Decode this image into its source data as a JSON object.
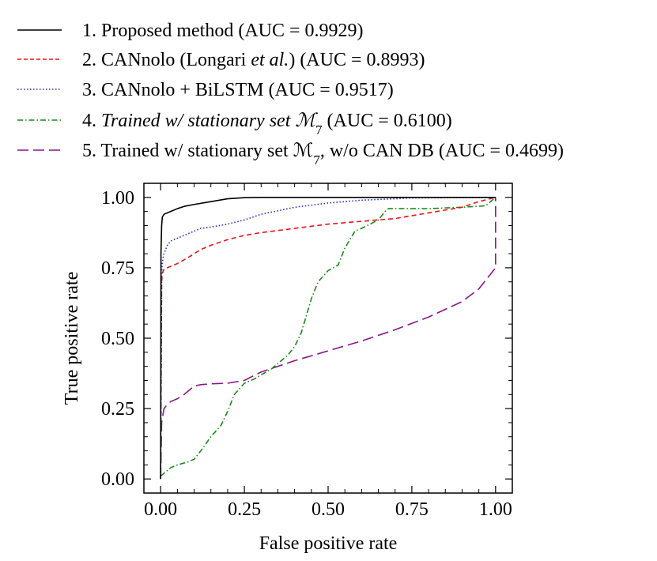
{
  "chart_data": {
    "type": "line",
    "title": "",
    "xlabel": "False positive rate",
    "ylabel": "True positive rate",
    "xlim": [
      -0.05,
      1.05
    ],
    "ylim": [
      -0.05,
      1.05
    ],
    "x_ticks": [
      0.0,
      0.25,
      0.5,
      0.75,
      1.0
    ],
    "y_ticks": [
      0.0,
      0.25,
      0.5,
      0.75,
      1.0
    ],
    "x_tick_labels": [
      "0.00",
      "0.25",
      "0.50",
      "0.75",
      "1.00"
    ],
    "y_tick_labels": [
      "0.00",
      "0.25",
      "0.50",
      "0.75",
      "1.00"
    ],
    "legend_position": "top",
    "series": [
      {
        "name": "1. Proposed method (AUC = 0.9929)",
        "color": "#000000",
        "dash": "solid",
        "x": [
          0.0,
          0.001,
          0.003,
          0.005,
          0.01,
          0.02,
          0.03,
          0.05,
          0.07,
          0.1,
          0.15,
          0.2,
          0.25,
          0.3,
          0.5,
          0.75,
          1.0
        ],
        "y": [
          0.0,
          0.8,
          0.9,
          0.93,
          0.94,
          0.945,
          0.95,
          0.96,
          0.968,
          0.975,
          0.985,
          0.995,
          0.999,
          1.0,
          1.0,
          1.0,
          1.0
        ]
      },
      {
        "name": "2. CANnolo (Longari et al.) (AUC = 0.8993)",
        "color": "#e8141c",
        "dash": "6,4",
        "x": [
          0.0,
          0.003,
          0.005,
          0.01,
          0.02,
          0.05,
          0.08,
          0.1,
          0.12,
          0.15,
          0.2,
          0.25,
          0.3,
          0.4,
          0.5,
          0.6,
          0.7,
          0.75,
          0.8,
          0.9,
          0.95,
          1.0
        ],
        "y": [
          0.0,
          0.7,
          0.73,
          0.745,
          0.75,
          0.765,
          0.785,
          0.8,
          0.815,
          0.83,
          0.85,
          0.865,
          0.875,
          0.89,
          0.905,
          0.915,
          0.925,
          0.935,
          0.945,
          0.965,
          0.985,
          1.0
        ]
      },
      {
        "name": "3. CANnolo + BiLSTM (AUC = 0.9517)",
        "color": "#1f2bd6",
        "dash": "1.5,2.5",
        "x": [
          0.0,
          0.003,
          0.005,
          0.01,
          0.02,
          0.03,
          0.05,
          0.07,
          0.1,
          0.12,
          0.15,
          0.2,
          0.25,
          0.3,
          0.4,
          0.5,
          0.6,
          0.75,
          1.0
        ],
        "y": [
          0.0,
          0.72,
          0.77,
          0.8,
          0.83,
          0.845,
          0.855,
          0.865,
          0.88,
          0.89,
          0.895,
          0.905,
          0.92,
          0.94,
          0.965,
          0.98,
          0.99,
          0.998,
          1.0
        ]
      },
      {
        "name": "4. Trained w/ stationary set ℳ₇ (AUC = 0.6100)",
        "color": "#1a8a1a",
        "dash": "7,3,1.5,3",
        "x": [
          0.0,
          0.01,
          0.03,
          0.05,
          0.08,
          0.1,
          0.12,
          0.15,
          0.18,
          0.2,
          0.22,
          0.25,
          0.28,
          0.3,
          0.33,
          0.35,
          0.38,
          0.4,
          0.42,
          0.43,
          0.45,
          0.47,
          0.5,
          0.53,
          0.55,
          0.57,
          0.58,
          0.6,
          0.65,
          0.67,
          0.68,
          0.7,
          0.8,
          0.9,
          0.97,
          1.0
        ],
        "y": [
          0.01,
          0.02,
          0.04,
          0.05,
          0.06,
          0.07,
          0.1,
          0.15,
          0.19,
          0.24,
          0.3,
          0.34,
          0.355,
          0.37,
          0.39,
          0.41,
          0.44,
          0.47,
          0.52,
          0.56,
          0.64,
          0.7,
          0.74,
          0.76,
          0.82,
          0.86,
          0.88,
          0.89,
          0.92,
          0.95,
          0.96,
          0.96,
          0.96,
          0.965,
          0.97,
          1.0
        ]
      },
      {
        "name": "5. Trained w/ stationary set ℳ₇, w/o CAN DB (AUC = 0.4699)",
        "color": "#8a168a",
        "dash": "14,6",
        "x": [
          0.0,
          0.003,
          0.01,
          0.02,
          0.03,
          0.05,
          0.07,
          0.09,
          0.1,
          0.12,
          0.15,
          0.2,
          0.25,
          0.3,
          0.35,
          0.4,
          0.5,
          0.6,
          0.7,
          0.8,
          0.9,
          0.95,
          0.98,
          1.0,
          1.0
        ],
        "y": [
          0.0,
          0.2,
          0.25,
          0.265,
          0.275,
          0.285,
          0.3,
          0.32,
          0.33,
          0.335,
          0.338,
          0.34,
          0.35,
          0.38,
          0.4,
          0.42,
          0.455,
          0.49,
          0.53,
          0.575,
          0.63,
          0.675,
          0.72,
          0.75,
          1.0
        ]
      }
    ]
  },
  "legend": {
    "items": [
      {
        "number": "1.",
        "label": "Proposed method",
        "auc": "(AUC = 0.9929)"
      },
      {
        "number": "2.",
        "label_pre": "CANnolo (Longari ",
        "label_em": "et al.",
        "label_post": ")",
        "auc": "(AUC = 0.8993)"
      },
      {
        "number": "3.",
        "label": "CANnolo + BiLSTM",
        "auc": "(AUC = 0.9517)"
      },
      {
        "number": "4.",
        "label": "Trained w/ stationary set ℳ",
        "subscript": "7",
        "auc": "(AUC = 0.6100)"
      },
      {
        "number": "5.",
        "label": "Trained w/ stationary set ℳ",
        "subscript": "7",
        "label_post": ", w/o CAN DB",
        "auc": "(AUC = 0.4699)"
      }
    ]
  }
}
